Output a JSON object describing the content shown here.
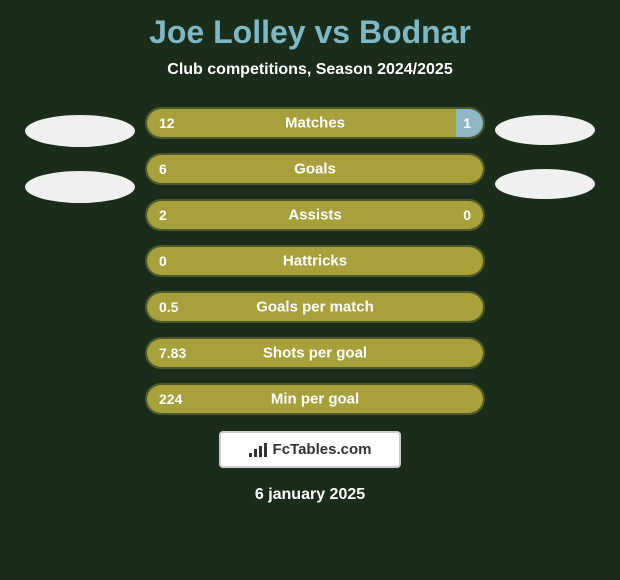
{
  "title": {
    "player1": "Joe Lolley",
    "vs": "vs",
    "player2": "Bodnar"
  },
  "subtitle": "Club competitions, Season 2024/2025",
  "colors": {
    "background": "#1a2d1a",
    "title_color": "#7eb8c4",
    "subtitle_color": "#ffffff",
    "bar_left_color": "#a8a03a",
    "bar_right_color": "#8fb8c4",
    "bar_border": "#4a5a2a",
    "ellipse_color": "#f0f0f0",
    "text_white": "#ffffff"
  },
  "stats": [
    {
      "label": "Matches",
      "left_value": "12",
      "right_value": "1",
      "left_pct": 92,
      "show_right_value": true
    },
    {
      "label": "Goals",
      "left_value": "6",
      "right_value": "",
      "left_pct": 100,
      "show_right_value": false
    },
    {
      "label": "Assists",
      "left_value": "2",
      "right_value": "0",
      "left_pct": 100,
      "show_right_value": true
    },
    {
      "label": "Hattricks",
      "left_value": "0",
      "right_value": "",
      "left_pct": 100,
      "show_right_value": false
    },
    {
      "label": "Goals per match",
      "left_value": "0.5",
      "right_value": "",
      "left_pct": 100,
      "show_right_value": false
    },
    {
      "label": "Shots per goal",
      "left_value": "7.83",
      "right_value": "",
      "left_pct": 100,
      "show_right_value": false
    },
    {
      "label": "Min per goal",
      "left_value": "224",
      "right_value": "",
      "left_pct": 100,
      "show_right_value": false
    }
  ],
  "footer": {
    "badge_text": "FcTables.com",
    "date": "6 january 2025"
  }
}
